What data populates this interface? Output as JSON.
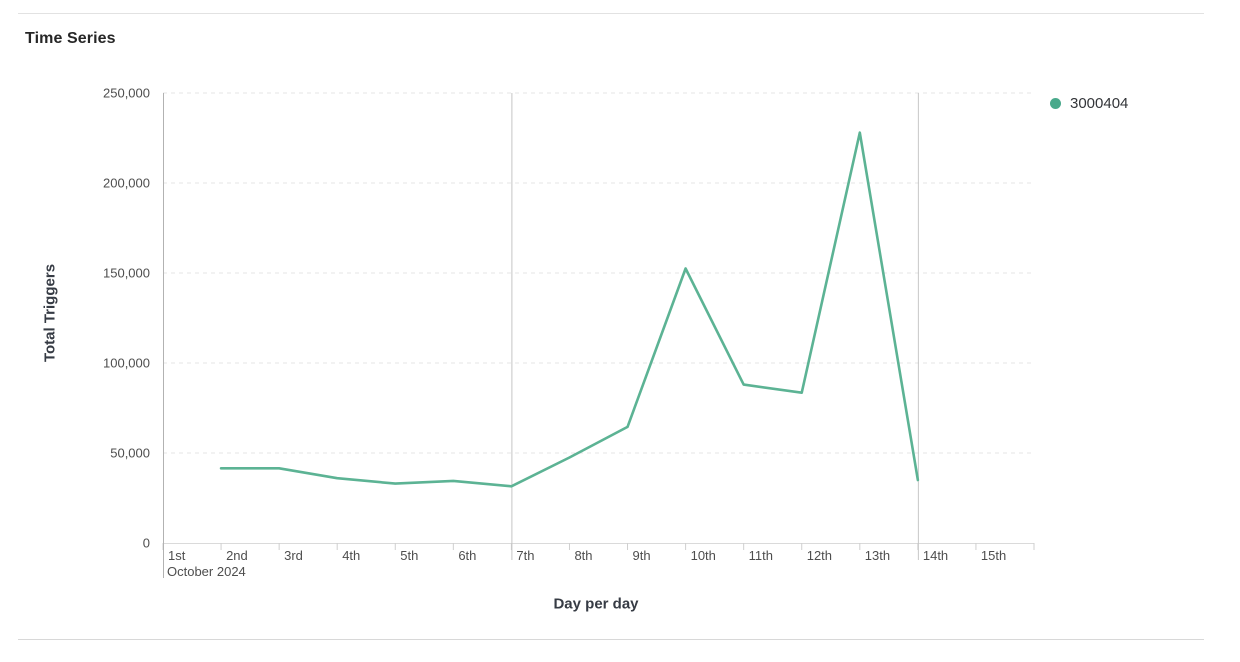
{
  "page": {
    "title": "Time Series"
  },
  "legend": {
    "items": [
      {
        "label": "3000404",
        "color": "#49a98b"
      }
    ]
  },
  "colors": {
    "line": "#5cb394",
    "legend_dot": "#49a98b",
    "grid": "#e4e4e4",
    "axis": "#b2b2b2",
    "marker_line": "#c6c6c6",
    "baseline": "#dadada",
    "tick": "#cfcfcf",
    "label": "#4e4e4e"
  },
  "chart_data": {
    "type": "line",
    "title": "Time Series",
    "xlabel": "Day per day",
    "ylabel": "Total Triggers",
    "x_secondary_label": "October 2024",
    "categories": [
      "1st",
      "2nd",
      "3rd",
      "4th",
      "5th",
      "6th",
      "7th",
      "8th",
      "9th",
      "10th",
      "11th",
      "12th",
      "13th",
      "14th",
      "15th"
    ],
    "series": [
      {
        "name": "3000404",
        "color": "#5cb394",
        "values": [
          null,
          41500,
          41500,
          36000,
          33000,
          34500,
          31500,
          47500,
          64500,
          152500,
          88000,
          83500,
          228000,
          35000,
          null
        ]
      }
    ],
    "ylim": [
      0,
      250000
    ],
    "y_ticks": [
      0,
      50000,
      100000,
      150000,
      200000,
      250000
    ],
    "y_tick_labels": [
      "0",
      "50,000",
      "100,000",
      "150,000",
      "200,000",
      "250,000"
    ],
    "grid": "dashed-horizontal",
    "week_marker_categories": [
      "1st",
      "7th",
      "14th"
    ],
    "legend_position": "top-right"
  }
}
